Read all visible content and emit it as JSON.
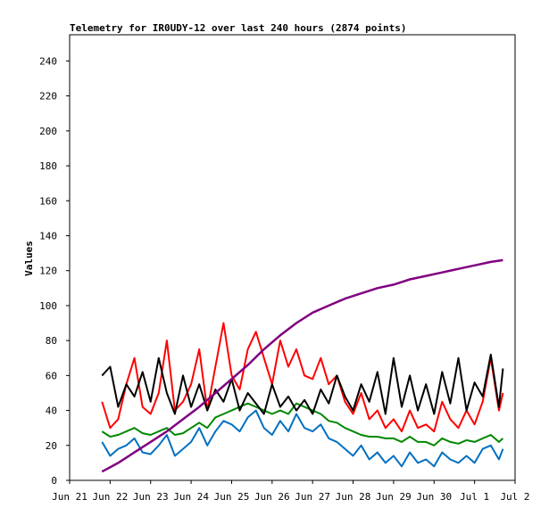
{
  "chart_data": {
    "type": "line",
    "title": "Telemetry for IR0UDY-12 over last 240 hours (2874 points)",
    "xlabel": "",
    "ylabel": "Values",
    "ylim": [
      0,
      255
    ],
    "yticks": [
      0,
      20,
      40,
      60,
      80,
      100,
      120,
      140,
      160,
      180,
      200,
      220,
      240
    ],
    "xlim": [
      "Jun 21",
      "Jul 2"
    ],
    "xticks": [
      "Jun 21",
      "Jun 22",
      "Jun 23",
      "Jun 24",
      "Jun 25",
      "Jun 26",
      "Jun 27",
      "Jun 28",
      "Jun 29",
      "Jun 30",
      "Jul 1",
      "Jul 2"
    ],
    "grid": false,
    "legend": "none",
    "series": [
      {
        "color": "#ff0000",
        "x": [
          21.8,
          22.0,
          22.2,
          22.4,
          22.6,
          22.8,
          23.0,
          23.2,
          23.4,
          23.6,
          23.8,
          24.0,
          24.2,
          24.4,
          24.6,
          24.8,
          25.0,
          25.2,
          25.4,
          25.6,
          25.8,
          26.0,
          26.2,
          26.4,
          26.6,
          26.8,
          27.0,
          27.2,
          27.4,
          27.6,
          27.8,
          28.0,
          28.2,
          28.4,
          28.6,
          28.8,
          29.0,
          29.2,
          29.4,
          29.6,
          29.8,
          30.0,
          30.2,
          30.4,
          30.6,
          30.8,
          31.0,
          31.2,
          31.4,
          31.6,
          31.7
        ],
        "values": [
          45,
          30,
          35,
          55,
          70,
          42,
          38,
          50,
          80,
          40,
          45,
          55,
          75,
          40,
          65,
          90,
          60,
          52,
          75,
          85,
          70,
          55,
          80,
          65,
          75,
          60,
          58,
          70,
          55,
          60,
          45,
          38,
          50,
          35,
          40,
          30,
          35,
          28,
          40,
          30,
          32,
          28,
          45,
          35,
          30,
          40,
          32,
          45,
          70,
          40,
          50
        ]
      },
      {
        "color": "#008800",
        "x": [
          21.8,
          22.0,
          22.2,
          22.4,
          22.6,
          22.8,
          23.0,
          23.2,
          23.4,
          23.6,
          23.8,
          24.0,
          24.2,
          24.4,
          24.6,
          24.8,
          25.0,
          25.2,
          25.4,
          25.6,
          25.8,
          26.0,
          26.2,
          26.4,
          26.6,
          26.8,
          27.0,
          27.2,
          27.4,
          27.6,
          27.8,
          28.0,
          28.2,
          28.4,
          28.6,
          28.8,
          29.0,
          29.2,
          29.4,
          29.6,
          29.8,
          30.0,
          30.2,
          30.4,
          30.6,
          30.8,
          31.0,
          31.2,
          31.4,
          31.6,
          31.7
        ],
        "values": [
          28,
          25,
          26,
          28,
          30,
          27,
          26,
          28,
          30,
          26,
          27,
          30,
          33,
          30,
          36,
          38,
          40,
          42,
          44,
          42,
          40,
          38,
          40,
          38,
          44,
          42,
          40,
          38,
          34,
          33,
          30,
          28,
          26,
          25,
          25,
          24,
          24,
          22,
          25,
          22,
          22,
          20,
          24,
          22,
          21,
          23,
          22,
          24,
          26,
          22,
          24
        ]
      },
      {
        "color": "#0070c0",
        "x": [
          21.8,
          22.0,
          22.2,
          22.4,
          22.6,
          22.8,
          23.0,
          23.2,
          23.4,
          23.6,
          23.8,
          24.0,
          24.2,
          24.4,
          24.6,
          24.8,
          25.0,
          25.2,
          25.4,
          25.6,
          25.8,
          26.0,
          26.2,
          26.4,
          26.6,
          26.8,
          27.0,
          27.2,
          27.4,
          27.6,
          27.8,
          28.0,
          28.2,
          28.4,
          28.6,
          28.8,
          29.0,
          29.2,
          29.4,
          29.6,
          29.8,
          30.0,
          30.2,
          30.4,
          30.6,
          30.8,
          31.0,
          31.2,
          31.4,
          31.6,
          31.7
        ],
        "values": [
          22,
          14,
          18,
          20,
          24,
          16,
          15,
          20,
          26,
          14,
          18,
          22,
          30,
          20,
          28,
          34,
          32,
          28,
          36,
          40,
          30,
          26,
          34,
          28,
          38,
          30,
          28,
          32,
          24,
          22,
          18,
          14,
          20,
          12,
          16,
          10,
          14,
          8,
          16,
          10,
          12,
          8,
          16,
          12,
          10,
          14,
          10,
          18,
          20,
          12,
          18
        ]
      },
      {
        "color": "#000000",
        "x": [
          21.8,
          22.0,
          22.2,
          22.4,
          22.6,
          22.8,
          23.0,
          23.2,
          23.4,
          23.6,
          23.8,
          24.0,
          24.2,
          24.4,
          24.6,
          24.8,
          25.0,
          25.2,
          25.4,
          25.6,
          25.8,
          26.0,
          26.2,
          26.4,
          26.6,
          26.8,
          27.0,
          27.2,
          27.4,
          27.6,
          27.8,
          28.0,
          28.2,
          28.4,
          28.6,
          28.8,
          29.0,
          29.2,
          29.4,
          29.6,
          29.8,
          30.0,
          30.2,
          30.4,
          30.6,
          30.8,
          31.0,
          31.2,
          31.4,
          31.6,
          31.7
        ],
        "values": [
          60,
          65,
          42,
          55,
          48,
          62,
          45,
          70,
          50,
          38,
          60,
          42,
          55,
          40,
          52,
          45,
          58,
          40,
          50,
          44,
          38,
          55,
          42,
          48,
          40,
          46,
          38,
          52,
          44,
          60,
          48,
          40,
          55,
          45,
          62,
          38,
          70,
          42,
          60,
          40,
          55,
          38,
          62,
          44,
          70,
          40,
          56,
          48,
          72,
          42,
          64
        ]
      },
      {
        "color": "#800080",
        "x": [
          21.8,
          22.2,
          22.6,
          23.0,
          23.4,
          23.8,
          24.2,
          24.6,
          25.0,
          25.4,
          25.8,
          26.2,
          26.6,
          27.0,
          27.4,
          27.8,
          28.2,
          28.6,
          29.0,
          29.4,
          29.8,
          30.2,
          30.6,
          31.0,
          31.4,
          31.7
        ],
        "values": [
          5,
          10,
          16,
          22,
          28,
          35,
          42,
          50,
          58,
          66,
          75,
          83,
          90,
          96,
          100,
          104,
          107,
          110,
          112,
          115,
          117,
          119,
          121,
          123,
          125,
          126
        ]
      }
    ]
  }
}
